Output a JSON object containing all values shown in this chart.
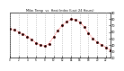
{
  "title": "Milw. Temp  vs  Heat Index (Last 24 Hours)",
  "background_color": "#ffffff",
  "plot_bg_color": "#ffffff",
  "grid_color": "#aaaaaa",
  "line_color_temp": "#ff0000",
  "line_color_hi": "#000000",
  "hours": [
    0,
    1,
    2,
    3,
    4,
    5,
    6,
    7,
    8,
    9,
    10,
    11,
    12,
    13,
    14,
    15,
    16,
    17,
    18,
    19,
    20,
    21,
    22,
    23
  ],
  "temp": [
    65,
    63,
    60,
    57,
    53,
    48,
    43,
    40,
    38,
    42,
    52,
    62,
    70,
    76,
    80,
    79,
    75,
    68,
    58,
    50,
    44,
    40,
    36,
    32
  ],
  "heat_index": [
    65,
    63,
    60,
    57,
    53,
    48,
    43,
    40,
    38,
    42,
    52,
    62,
    70,
    76,
    80,
    79,
    75,
    68,
    58,
    50,
    44,
    40,
    36,
    32
  ],
  "ylim_min": 20,
  "ylim_max": 90,
  "xlim_min": 0,
  "xlim_max": 23
}
